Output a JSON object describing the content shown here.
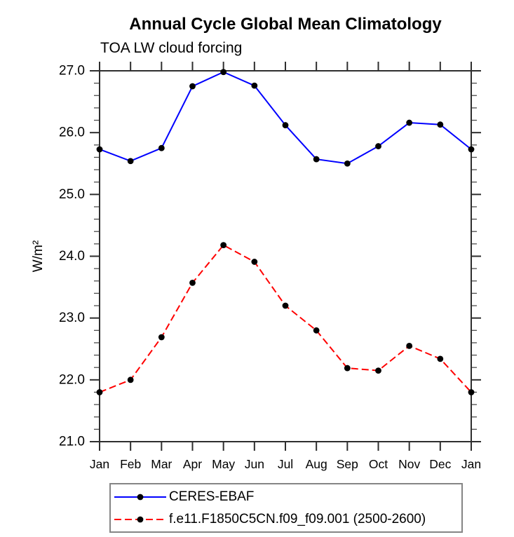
{
  "chart_data": {
    "type": "line",
    "title": "Annual Cycle Global Mean Climatology",
    "subtitle": "TOA LW cloud forcing",
    "ylabel": "W/m²",
    "xlabel": "",
    "categories": [
      "Jan",
      "Feb",
      "Mar",
      "Apr",
      "May",
      "Jun",
      "Jul",
      "Aug",
      "Sep",
      "Oct",
      "Nov",
      "Dec",
      "Jan"
    ],
    "ylim": [
      21.0,
      27.0
    ],
    "yticks": [
      21.0,
      22.0,
      23.0,
      24.0,
      25.0,
      26.0,
      27.0
    ],
    "ytick_labels": [
      "21.0",
      "22.0",
      "23.0",
      "24.0",
      "25.0",
      "26.0",
      "27.0"
    ],
    "minor_tick_interval": 0.2,
    "grid": false,
    "legend_position": "bottom-center",
    "frame_color": "#2e2e2e",
    "marker_color": "#000000",
    "series": [
      {
        "name": "CERES-EBAF",
        "color": "#0000ff",
        "dash": "solid",
        "marker": "filled-circle",
        "values": [
          25.73,
          25.54,
          25.75,
          26.75,
          26.98,
          26.76,
          26.12,
          25.57,
          25.5,
          25.78,
          26.16,
          26.13,
          25.73
        ]
      },
      {
        "name": "f.e11.F1850C5CN.f09_f09.001 (2500-2600)",
        "color": "#ff0000",
        "dash": "dashed",
        "marker": "filled-circle",
        "values": [
          21.8,
          22.0,
          22.69,
          23.57,
          24.18,
          23.91,
          23.2,
          22.8,
          22.19,
          22.15,
          22.55,
          22.34,
          21.8
        ]
      }
    ]
  }
}
